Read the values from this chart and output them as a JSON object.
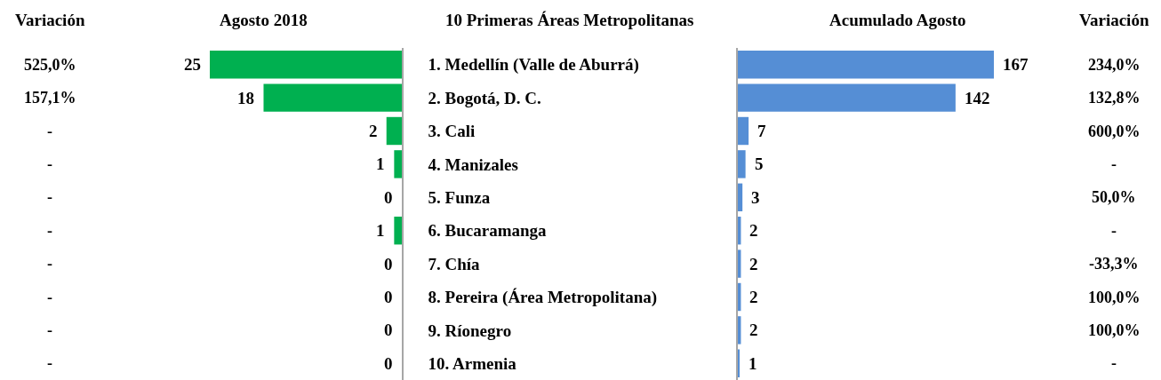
{
  "chart_data": [
    {
      "type": "other",
      "title": "Variación",
      "annotations": [
        "525,0%",
        "157,1%",
        "-",
        "-",
        "-",
        "-",
        "-",
        "-",
        "-",
        "-"
      ]
    },
    {
      "type": "bar",
      "orientation": "horizontal",
      "title": "Agosto 2018",
      "ylabel": "10 Primeras Áreas Metropolitanas",
      "categories": [
        "1. Medellín (Valle de Aburrá)",
        "2. Bogotá, D. C.",
        "3. Cali",
        "4. Manizales",
        "5. Funza",
        "6. Bucaramanga",
        "7. Chía",
        "8. Pereira (Área Metropolitana)",
        "9. Ríonegro",
        "10. Armenia"
      ],
      "values": [
        25,
        18,
        2,
        1,
        0,
        1,
        0,
        0,
        0,
        0
      ],
      "color": "#00b050",
      "data_labels": true,
      "xlim": [
        25,
        0
      ],
      "tick_labels": "y"
    },
    {
      "type": "bar",
      "orientation": "horizontal",
      "title": "Acumulado Agosto",
      "categories": [
        null,
        null,
        null,
        null,
        null,
        null,
        null,
        null,
        null,
        null
      ],
      "values": [
        167,
        142,
        7,
        5,
        3,
        2,
        2,
        2,
        2,
        1
      ],
      "color": "#558ed5",
      "data_labels": true,
      "xlim": [
        0,
        167
      ]
    },
    {
      "type": "other",
      "title": "Variación",
      "annotations": [
        "234,0%",
        "132,8%",
        "600,0%",
        "-",
        "50,0%",
        "-",
        "-33,3%",
        "100,0%",
        "100,0%",
        "-"
      ]
    }
  ]
}
